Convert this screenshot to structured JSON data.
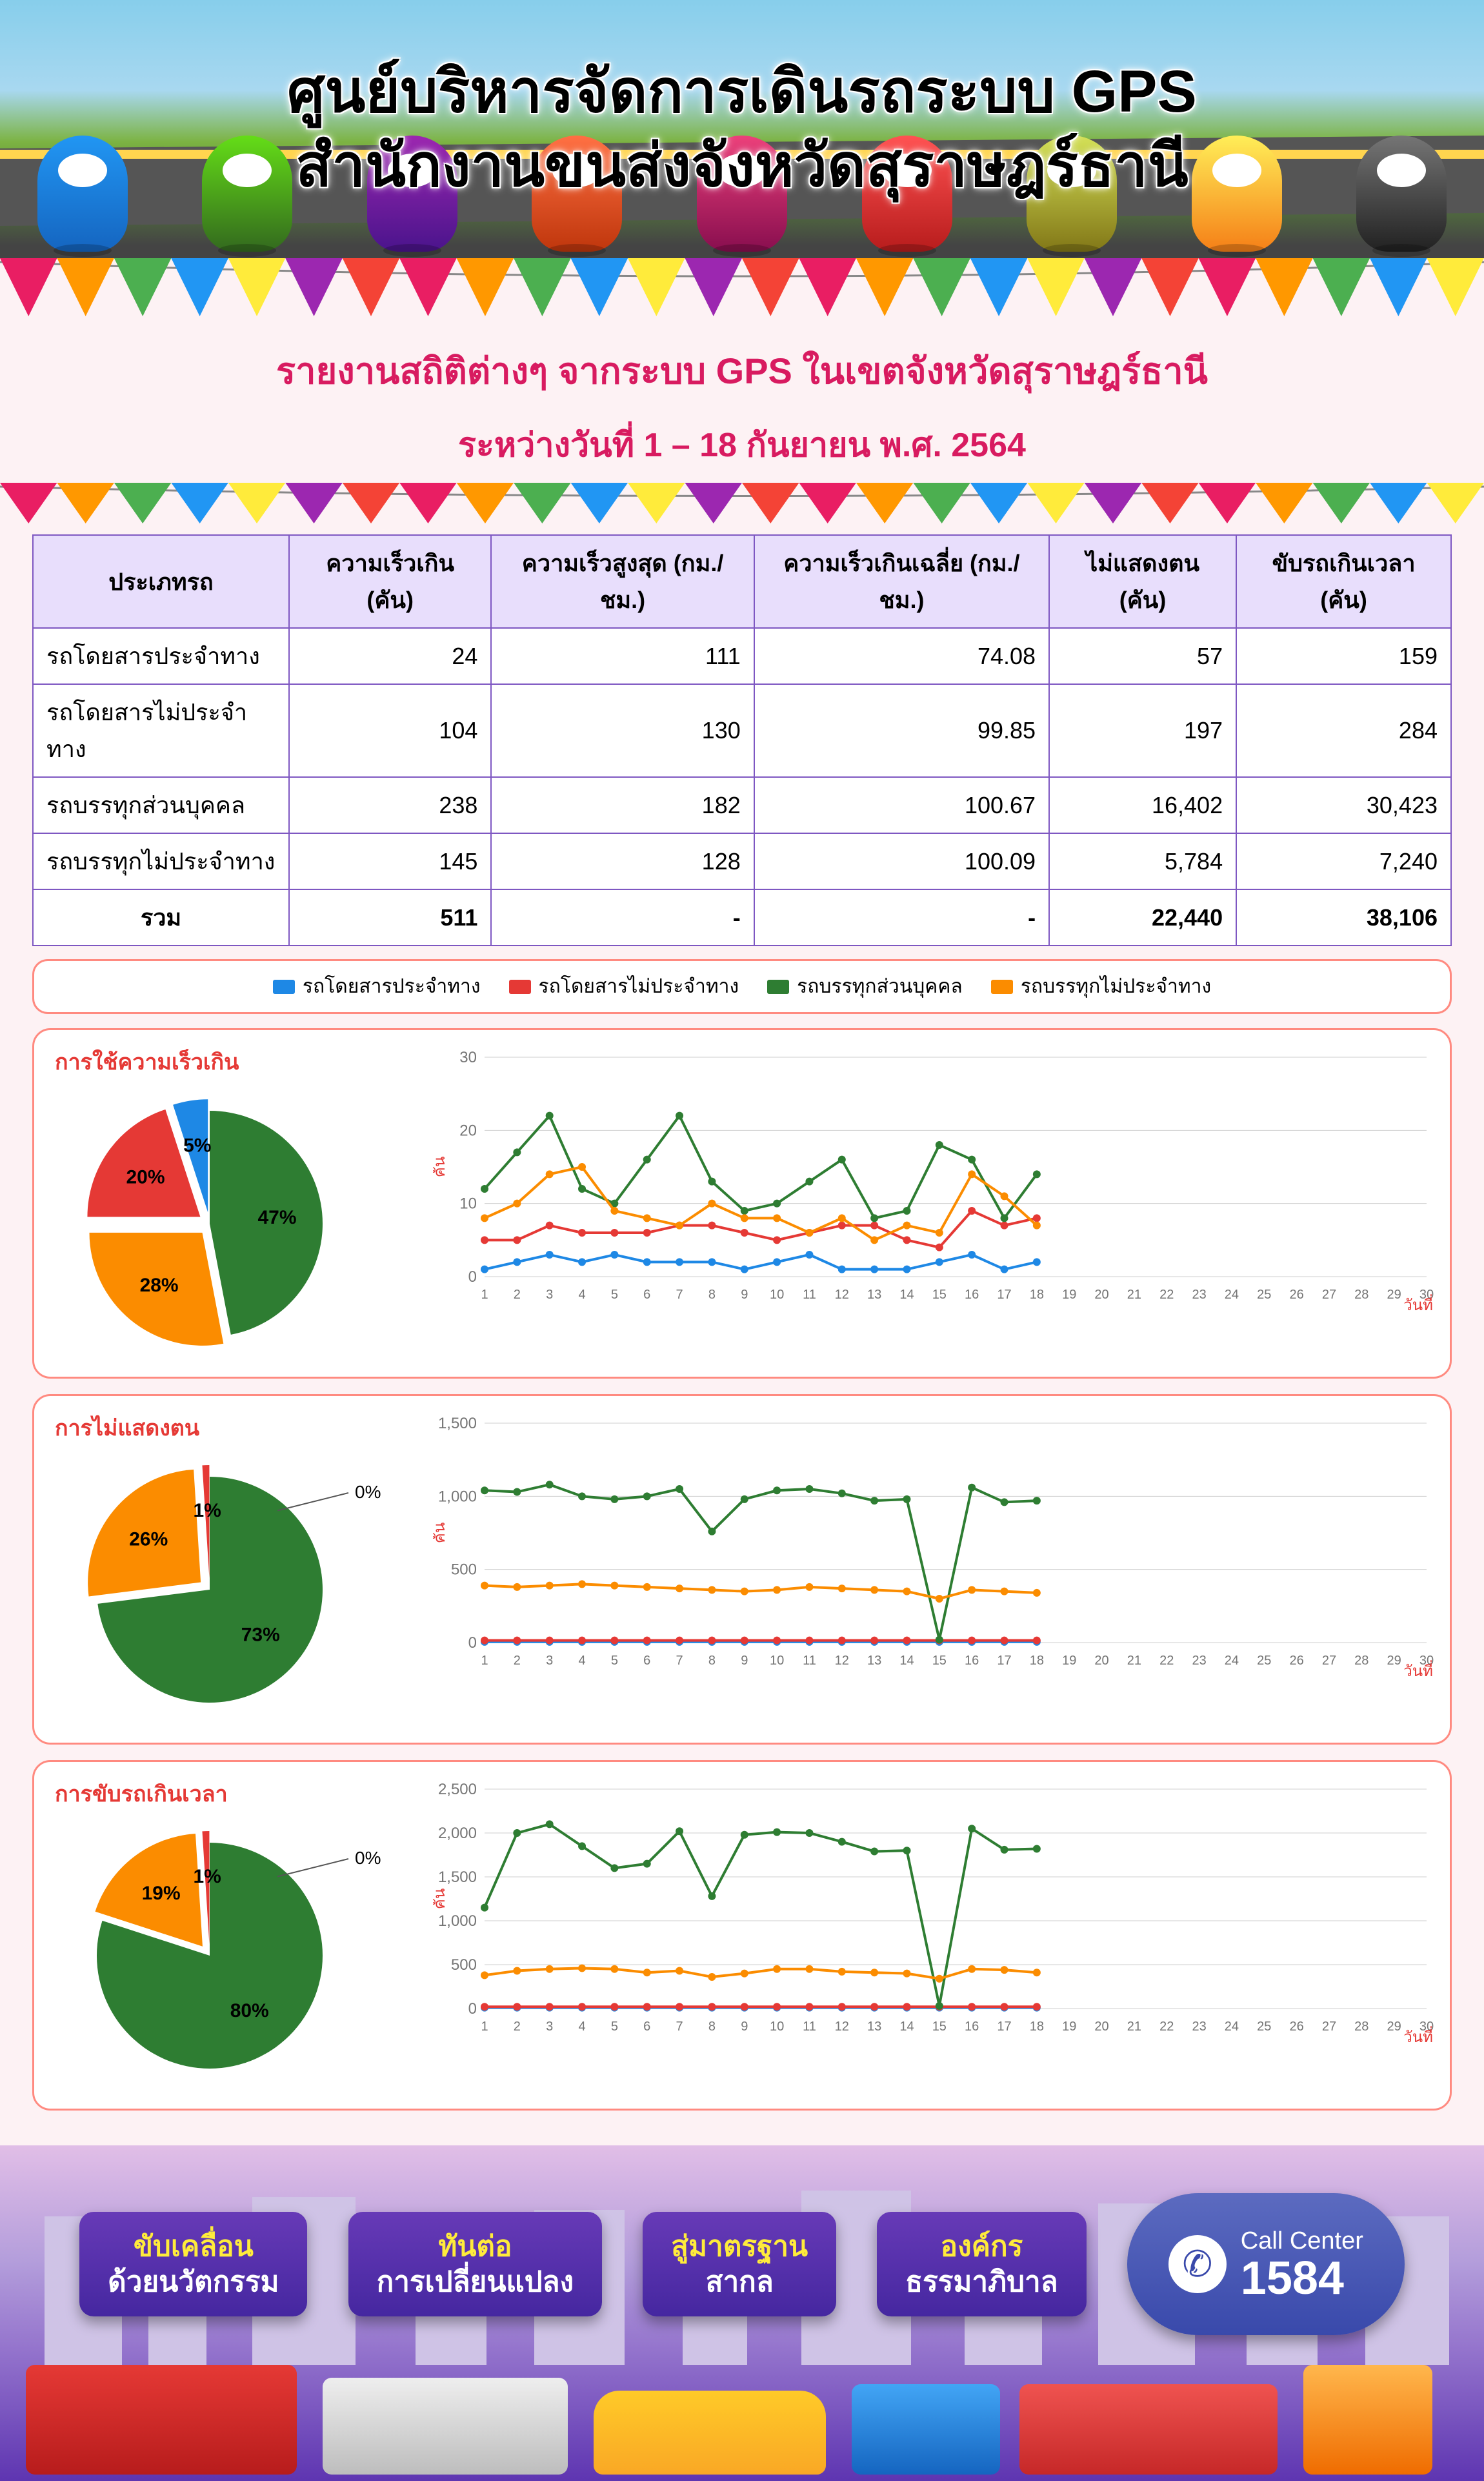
{
  "colors": {
    "cat_bus_regular": "#1e88e5",
    "cat_bus_nonregular": "#e53935",
    "cat_truck_personal": "#2e7d32",
    "cat_truck_nonregular": "#fb8c00",
    "panel_border": "#ff8a80",
    "accent_text": "#d81b60",
    "table_header_bg": "#e8defc",
    "table_border": "#7e57c2",
    "grid": "#cfcfcf",
    "axis_text": "#757575",
    "pie_label": "#000000"
  },
  "header": {
    "line1": "ศูนย์บริหารจัดการเดินรถระบบ GPS",
    "line2": "สำนักงานขนส่งจังหวัดสุราษฎร์ธานี"
  },
  "subheader": {
    "title": "รายงานสถิติต่างๆ จากระบบ GPS ในเขตจังหวัดสุราษฎร์ธานี",
    "date_line": "ระหว่างวันที่ 1 – 18 กันยายน พ.ศ. 2564"
  },
  "legend": {
    "a": "รถโดยสารประจำทาง",
    "b": "รถโดยสารไม่ประจำทาง",
    "c": "รถบรรทุกส่วนบุคคล",
    "d": "รถบรรทุกไม่ประจำทาง"
  },
  "table": {
    "columns": [
      "ประเภทรถ",
      "ความเร็วเกิน (คัน)",
      "ความเร็วสูงสุด (กม./ชม.)",
      "ความเร็วเกินเฉลี่ย (กม./ชม.)",
      "ไม่แสดงตน (คัน)",
      "ขับรถเกินเวลา (คัน)"
    ],
    "rows": [
      [
        "รถโดยสารประจำทาง",
        "24",
        "111",
        "74.08",
        "57",
        "159"
      ],
      [
        "รถโดยสารไม่ประจำทาง",
        "104",
        "130",
        "99.85",
        "197",
        "284"
      ],
      [
        "รถบรรทุกส่วนบุคคล",
        "238",
        "182",
        "100.67",
        "16,402",
        "30,423"
      ],
      [
        "รถบรรทุกไม่ประจำทาง",
        "145",
        "128",
        "100.09",
        "5,784",
        "7,240"
      ]
    ],
    "total_label": "รวม",
    "total": [
      "511",
      "-",
      "-",
      "22,440",
      "38,106"
    ]
  },
  "charts": {
    "x_days": [
      1,
      2,
      3,
      4,
      5,
      6,
      7,
      8,
      9,
      10,
      11,
      12,
      13,
      14,
      15,
      16,
      17,
      18,
      19,
      20,
      21,
      22,
      23,
      24,
      25,
      26,
      27,
      28,
      29,
      30
    ],
    "y_label": "คัน",
    "x_label": "วันที่",
    "speed": {
      "title": "การใช้ความเร็วเกิน",
      "pie": {
        "a": 5,
        "b": 20,
        "c": 47,
        "d": 28
      },
      "ymax": 30,
      "ystep": 10,
      "series": {
        "a": [
          1,
          2,
          3,
          2,
          3,
          2,
          2,
          2,
          1,
          2,
          3,
          1,
          1,
          1,
          2,
          3,
          1,
          2
        ],
        "b": [
          5,
          5,
          7,
          6,
          6,
          6,
          7,
          7,
          6,
          5,
          6,
          7,
          7,
          5,
          4,
          9,
          7,
          8
        ],
        "c": [
          12,
          17,
          22,
          12,
          10,
          16,
          22,
          13,
          9,
          10,
          13,
          16,
          8,
          9,
          18,
          16,
          8,
          14
        ],
        "d": [
          8,
          10,
          14,
          15,
          9,
          8,
          7,
          10,
          8,
          8,
          6,
          8,
          5,
          7,
          6,
          14,
          11,
          7
        ]
      }
    },
    "identity": {
      "title": "การไม่แสดงตน",
      "pie": {
        "a": 0,
        "b": 1,
        "c": 73,
        "d": 26
      },
      "ymax": 1500,
      "ystep": 500,
      "series": {
        "a": [
          5,
          5,
          5,
          5,
          5,
          5,
          5,
          5,
          5,
          5,
          5,
          5,
          5,
          5,
          5,
          5,
          5,
          5
        ],
        "b": [
          15,
          15,
          15,
          15,
          15,
          15,
          15,
          15,
          15,
          15,
          15,
          15,
          15,
          15,
          15,
          15,
          15,
          15
        ],
        "c": [
          1040,
          1030,
          1080,
          1000,
          980,
          1000,
          1050,
          760,
          980,
          1040,
          1050,
          1020,
          970,
          980,
          20,
          1060,
          960,
          970
        ],
        "d": [
          390,
          380,
          390,
          400,
          390,
          380,
          370,
          360,
          350,
          360,
          380,
          370,
          360,
          350,
          300,
          360,
          350,
          340
        ]
      }
    },
    "overtime": {
      "title": "การขับรถเกินเวลา",
      "pie": {
        "a": 0,
        "b": 1,
        "c": 80,
        "d": 19
      },
      "ymax": 2500,
      "ystep": 500,
      "series": {
        "a": [
          10,
          10,
          10,
          10,
          10,
          10,
          10,
          10,
          10,
          10,
          10,
          10,
          10,
          10,
          10,
          10,
          10,
          10
        ],
        "b": [
          20,
          20,
          20,
          20,
          20,
          20,
          20,
          20,
          20,
          20,
          20,
          20,
          20,
          20,
          20,
          20,
          20,
          20
        ],
        "c": [
          1150,
          2000,
          2100,
          1850,
          1600,
          1650,
          2020,
          1280,
          1980,
          2010,
          2000,
          1900,
          1790,
          1800,
          30,
          2050,
          1810,
          1820
        ],
        "d": [
          380,
          430,
          450,
          460,
          450,
          410,
          430,
          360,
          400,
          450,
          450,
          420,
          410,
          400,
          340,
          450,
          440,
          410
        ]
      }
    }
  },
  "footer": {
    "badges": [
      {
        "top": "ขับเคลื่อน",
        "bottom": "ด้วยนวัตกรรม"
      },
      {
        "top": "ทันต่อ",
        "bottom": "การเปลี่ยนแปลง"
      },
      {
        "top": "สู่มาตรฐาน",
        "bottom": "สากล"
      },
      {
        "top": "องค์กร",
        "bottom": "ธรรมาภิบาล"
      }
    ],
    "callcenter": {
      "label": "Call Center",
      "number": "1584"
    }
  }
}
